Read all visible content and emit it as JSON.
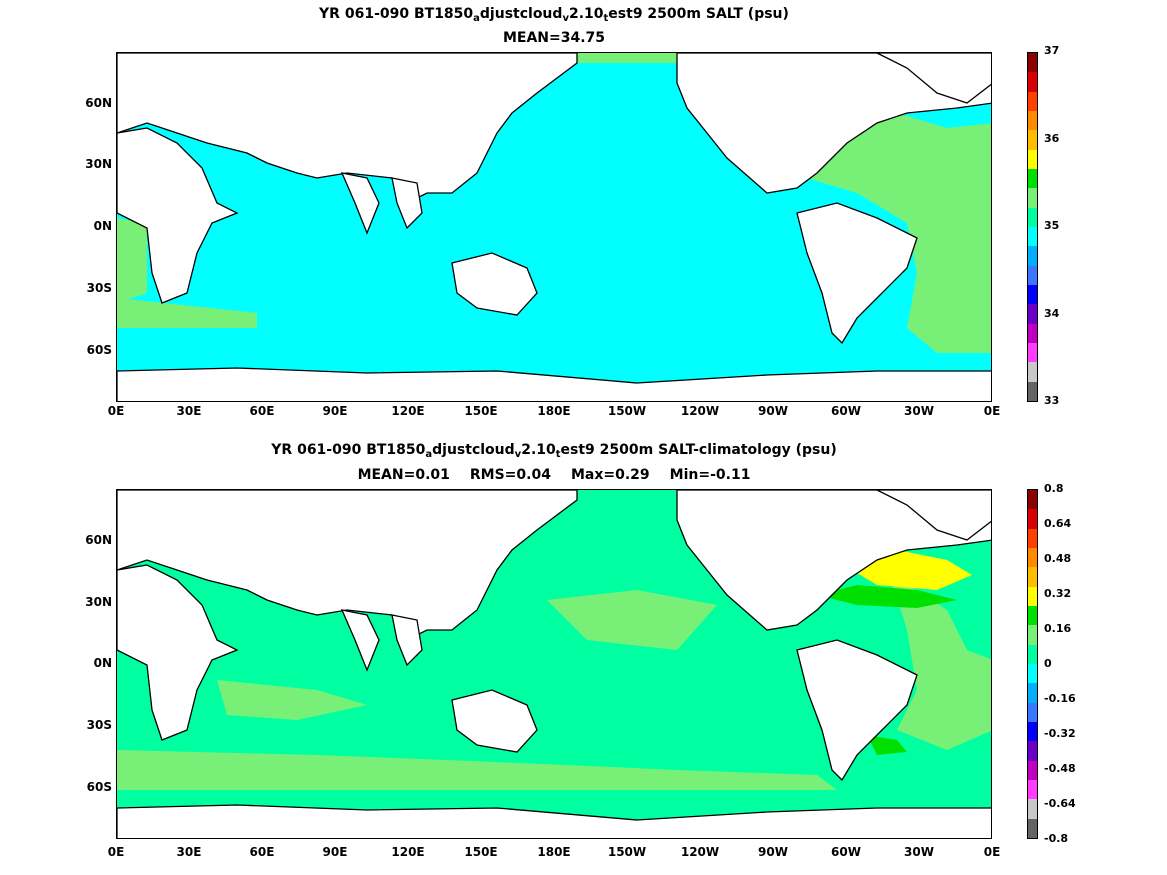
{
  "panels": [
    {
      "title_parts": [
        "YR 061-090 BT1850",
        "a",
        "djustcloud",
        "v",
        "2.10",
        "t",
        "est9 2500m SALT (psu)"
      ],
      "stats": [
        "MEAN=34.75"
      ],
      "y_ticks": [
        "60N",
        "30N",
        "0N",
        "30S",
        "60S"
      ],
      "x_ticks": [
        "0E",
        "30E",
        "60E",
        "90E",
        "120E",
        "150E",
        "180E",
        "150W",
        "120W",
        "90W",
        "60W",
        "30W",
        "0E"
      ],
      "colorbar": {
        "colors": [
          "#8b0000",
          "#d80000",
          "#ff3f00",
          "#ff8a00",
          "#ffbd00",
          "#ffff00",
          "#00e000",
          "#78f078",
          "#00ffa0",
          "#00ffff",
          "#00b0ff",
          "#3a78ff",
          "#0000ff",
          "#6a00c8",
          "#c000c0",
          "#ff3cff",
          "#c8c8c8",
          "#646464"
        ],
        "labels": [
          "37",
          "36",
          "35",
          "34",
          "33"
        ]
      },
      "ocean_color": "#00ffff",
      "atlantic_color": "#78f078"
    },
    {
      "title_parts": [
        "YR 061-090 BT1850",
        "a",
        "djustcloud",
        "v",
        "2.10",
        "t",
        "est9 2500m SALT-climatology (psu)"
      ],
      "stats": [
        "MEAN=0.01",
        "RMS=0.04",
        "Max=0.29",
        "Min=-0.11"
      ],
      "y_ticks": [
        "60N",
        "30N",
        "0N",
        "30S",
        "60S"
      ],
      "x_ticks": [
        "0E",
        "30E",
        "60E",
        "90E",
        "120E",
        "150E",
        "180E",
        "150W",
        "120W",
        "90W",
        "60W",
        "30W",
        "0E"
      ],
      "colorbar": {
        "colors": [
          "#8b0000",
          "#d80000",
          "#ff3f00",
          "#ff8a00",
          "#ffbd00",
          "#ffff00",
          "#00e000",
          "#78f078",
          "#00ffa0",
          "#00ffff",
          "#00b0ff",
          "#3a78ff",
          "#0000ff",
          "#6a00c8",
          "#c000c0",
          "#ff3cff",
          "#c8c8c8",
          "#646464"
        ],
        "labels": [
          "0.8",
          "0.64",
          "0.48",
          "0.32",
          "0.16",
          "0",
          "-0.16",
          "-0.32",
          "-0.48",
          "-0.64",
          "-0.8"
        ]
      },
      "ocean_color": "#00ffa0",
      "atlantic_color": "#78f078",
      "anomaly_color": "#ffff00"
    }
  ]
}
